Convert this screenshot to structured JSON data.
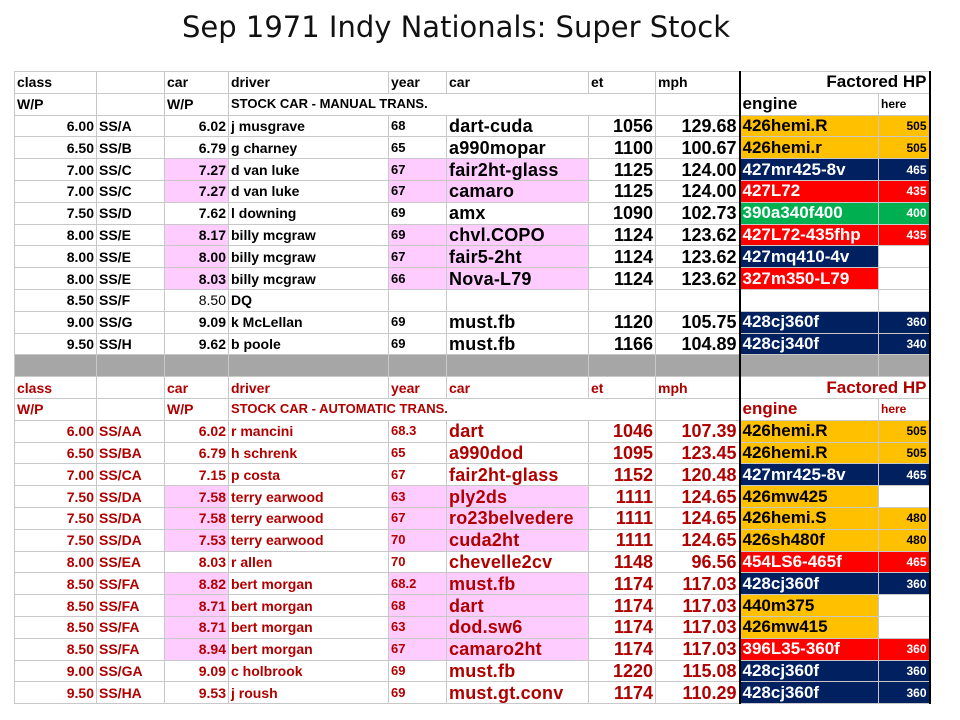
{
  "title": "Sep 1971 Indy Nationals: Super Stock",
  "colors": {
    "navy": "#002060",
    "orange": "#ffc000",
    "red": "#ff0000",
    "green": "#00b050",
    "pink": "#ffccff",
    "separator": "#a6a6a6",
    "dark_red_text": "#b00000"
  },
  "sections": [
    {
      "header1": {
        "class": "class",
        "car": "car",
        "driver": "driver",
        "year": "year",
        "car2": "car",
        "et": "et",
        "mph": "mph",
        "factored": "Factored HP"
      },
      "header2": {
        "wp": "W/P",
        "wp2": "W/P",
        "desc": "STOCK CAR - MANUAL TRANS.",
        "engine": "engine",
        "here": "here"
      },
      "rows": [
        {
          "index": "6.00",
          "class": "SS/A",
          "wp": "6.02",
          "driver": "j musgrave",
          "year": "68",
          "car": "dart-cuda",
          "et": "1056",
          "mph": "129.68",
          "engine": "426hemi.R",
          "hp": "505",
          "eng_color": "orange",
          "pink": false
        },
        {
          "index": "6.50",
          "class": "SS/B",
          "wp": "6.79",
          "driver": "g charney",
          "year": "65",
          "car": "a990mopar",
          "et": "1100",
          "mph": "100.67",
          "engine": "426hemi.r",
          "hp": "505",
          "eng_color": "orange",
          "pink": false
        },
        {
          "index": "7.00",
          "class": "SS/C",
          "wp": "7.27",
          "driver": "d van luke",
          "year": "67",
          "car": "fair2ht-glass",
          "et": "1125",
          "mph": "124.00",
          "engine": "427mr425-8v",
          "hp": "465",
          "eng_color": "navy",
          "pink": true
        },
        {
          "index": "7.00",
          "class": "SS/C",
          "wp": "7.27",
          "driver": "d van luke",
          "year": "67",
          "car": "camaro",
          "et": "1125",
          "mph": "124.00",
          "engine": "427L72",
          "hp": "435",
          "eng_color": "red",
          "pink": true
        },
        {
          "index": "7.50",
          "class": "SS/D",
          "wp": "7.62",
          "driver": "l downing",
          "year": "69",
          "car": "amx",
          "et": "1090",
          "mph": "102.73",
          "engine": "390a340f400",
          "hp": "400",
          "eng_color": "green",
          "pink": false
        },
        {
          "index": "8.00",
          "class": "SS/E",
          "wp": "8.17",
          "driver": "billy mcgraw",
          "year": "69",
          "car": "chvl.COPO",
          "et": "1124",
          "mph": "123.62",
          "engine": "427L72-435fhp",
          "hp": "435",
          "eng_color": "red",
          "pink": true
        },
        {
          "index": "8.00",
          "class": "SS/E",
          "wp": "8.00",
          "driver": "billy mcgraw",
          "year": "67",
          "car": "fair5-2ht",
          "et": "1124",
          "mph": "123.62",
          "engine": "427mq410-4v",
          "hp": "",
          "eng_color": "navy",
          "pink": true
        },
        {
          "index": "8.00",
          "class": "SS/E",
          "wp": "8.03",
          "driver": "billy mcgraw",
          "year": "66",
          "car": "Nova-L79",
          "et": "1124",
          "mph": "123.62",
          "engine": "327m350-L79",
          "hp": "",
          "eng_color": "red",
          "pink": true
        },
        {
          "index": "8.50",
          "class": "SS/F",
          "wp": "8.50",
          "driver": "DQ",
          "year": "",
          "car": "",
          "et": "",
          "mph": "",
          "engine": "",
          "hp": "",
          "eng_color": "none",
          "pink": false,
          "wp_light": true
        },
        {
          "index": "9.00",
          "class": "SS/G",
          "wp": "9.09",
          "driver": "k McLellan",
          "year": "69",
          "car": "must.fb",
          "et": "1120",
          "mph": "105.75",
          "engine": "428cj360f",
          "hp": "360",
          "eng_color": "navy",
          "pink": false
        },
        {
          "index": "9.50",
          "class": "SS/H",
          "wp": "9.62",
          "driver": "b poole",
          "year": "69",
          "car": "must.fb",
          "et": "1166",
          "mph": "104.89",
          "engine": "428cj340f",
          "hp": "340",
          "eng_color": "navy",
          "pink": false
        }
      ]
    },
    {
      "header1": {
        "class": "class",
        "car": "car",
        "driver": "driver",
        "year": "year",
        "car2": "car",
        "et": "et",
        "mph": "mph",
        "factored": "Factored HP"
      },
      "header2": {
        "wp": "W/P",
        "wp2": "W/P",
        "desc": "STOCK CAR - AUTOMATIC TRANS.",
        "engine": "engine",
        "here": "here"
      },
      "rows": [
        {
          "index": "6.00",
          "class": "SS/AA",
          "wp": "6.02",
          "driver": "r mancini",
          "year": "68.3",
          "car": "dart",
          "et": "1046",
          "mph": "107.39",
          "engine": "426hemi.R",
          "hp": "505",
          "eng_color": "orange",
          "pink": false
        },
        {
          "index": "6.50",
          "class": "SS/BA",
          "wp": "6.79",
          "driver": "h schrenk",
          "year": "65",
          "car": "a990dod",
          "et": "1095",
          "mph": "123.45",
          "engine": "426hemi.R",
          "hp": "505",
          "eng_color": "orange",
          "pink": false
        },
        {
          "index": "7.00",
          "class": "SS/CA",
          "wp": "7.15",
          "driver": "p costa",
          "year": "67",
          "car": "fair2ht-glass",
          "et": "1152",
          "mph": "120.48",
          "engine": "427mr425-8v",
          "hp": "465",
          "eng_color": "navy",
          "pink": false
        },
        {
          "index": "7.50",
          "class": "SS/DA",
          "wp": "7.58",
          "driver": "terry earwood",
          "year": "63",
          "car": "ply2ds",
          "et": "1111",
          "mph": "124.65",
          "engine": "426mw425",
          "hp": "",
          "eng_color": "orange",
          "pink": true
        },
        {
          "index": "7.50",
          "class": "SS/DA",
          "wp": "7.58",
          "driver": "terry earwood",
          "year": "67",
          "car": "ro23belvedere",
          "et": "1111",
          "mph": "124.65",
          "engine": "426hemi.S",
          "hp": "480",
          "eng_color": "orange",
          "pink": true
        },
        {
          "index": "7.50",
          "class": "SS/DA",
          "wp": "7.53",
          "driver": "terry earwood",
          "year": "70",
          "car": "cuda2ht",
          "et": "1111",
          "mph": "124.65",
          "engine": "426sh480f",
          "hp": "480",
          "eng_color": "orange",
          "pink": true
        },
        {
          "index": "8.00",
          "class": "SS/EA",
          "wp": "8.03",
          "driver": "r allen",
          "year": "70",
          "car": "chevelle2cv",
          "et": "1148",
          "mph": "96.56",
          "engine": "454LS6-465f",
          "hp": "465",
          "eng_color": "red",
          "pink": false
        },
        {
          "index": "8.50",
          "class": "SS/FA",
          "wp": "8.82",
          "driver": "bert morgan",
          "year": "68.2",
          "car": "must.fb",
          "et": "1174",
          "mph": "117.03",
          "engine": "428cj360f",
          "hp": "360",
          "eng_color": "navy",
          "pink": true
        },
        {
          "index": "8.50",
          "class": "SS/FA",
          "wp": "8.71",
          "driver": "bert morgan",
          "year": "68",
          "car": "dart",
          "et": "1174",
          "mph": "117.03",
          "engine": "440m375",
          "hp": "",
          "eng_color": "orange",
          "pink": true
        },
        {
          "index": "8.50",
          "class": "SS/FA",
          "wp": "8.71",
          "driver": "bert morgan",
          "year": "63",
          "car": "dod.sw6",
          "et": "1174",
          "mph": "117.03",
          "engine": "426mw415",
          "hp": "",
          "eng_color": "orange",
          "pink": true
        },
        {
          "index": "8.50",
          "class": "SS/FA",
          "wp": "8.94",
          "driver": "bert morgan",
          "year": "67",
          "car": "camaro2ht",
          "et": "1174",
          "mph": "117.03",
          "engine": "396L35-360f",
          "hp": "360",
          "eng_color": "red",
          "pink": true
        },
        {
          "index": "9.00",
          "class": "SS/GA",
          "wp": "9.09",
          "driver": "c holbrook",
          "year": "69",
          "car": "must.fb",
          "et": "1220",
          "mph": "115.08",
          "engine": "428cj360f",
          "hp": "360",
          "eng_color": "navy",
          "pink": false
        },
        {
          "index": "9.50",
          "class": "SS/HA",
          "wp": "9.53",
          "driver": "j roush",
          "year": "69",
          "car": "must.gt.conv",
          "et": "1174",
          "mph": "110.29",
          "engine": "428cj360f",
          "hp": "360",
          "eng_color": "navy",
          "pink": false
        }
      ]
    }
  ]
}
